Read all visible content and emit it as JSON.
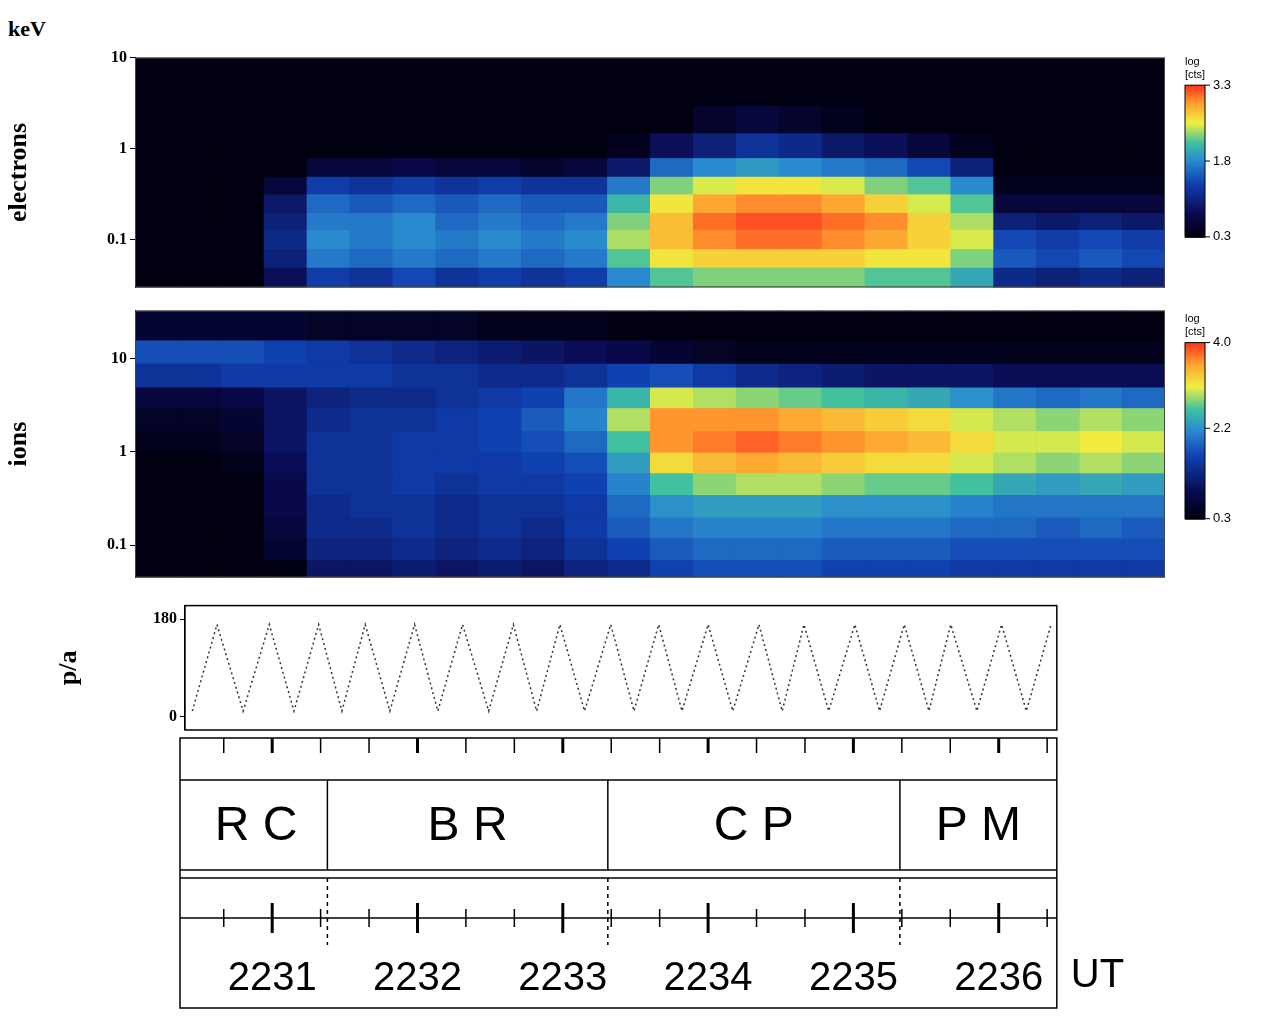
{
  "chart_data": [
    {
      "type": "heatmap",
      "ylabel": "electrons",
      "annotations": [
        "keV"
      ],
      "log": "y",
      "grid": false,
      "tick_labels": "y",
      "xlim": [
        2230.4,
        2236.4
      ],
      "ylim": [
        0.03,
        10
      ],
      "yticks": [
        0.1,
        1,
        10
      ],
      "x_edges": [
        2230.4,
        2230.65,
        2230.9,
        2231.15,
        2231.4,
        2231.65,
        2231.9,
        2232.15,
        2232.4,
        2232.65,
        2232.9,
        2233.15,
        2233.4,
        2233.65,
        2233.9,
        2234.15,
        2234.4,
        2234.65,
        2234.9,
        2235.15,
        2235.4,
        2235.65,
        2235.9,
        2236.15,
        2236.4
      ],
      "y_edges": [
        0.03,
        0.05,
        0.08,
        0.13,
        0.2,
        0.32,
        0.5,
        0.8,
        1.5,
        3,
        10
      ],
      "cells": [
        [
          0.3,
          0.3,
          0.3,
          0.8,
          1.3,
          1.2,
          1.4,
          1.2,
          1.3,
          1.2,
          1.3,
          1.8,
          2.2,
          2.3,
          2.3,
          2.3,
          2.3,
          2.2,
          2.2,
          2.0,
          1.1,
          1.0,
          1.1,
          1.0
        ],
        [
          0.3,
          0.3,
          0.3,
          1.0,
          1.7,
          1.6,
          1.7,
          1.6,
          1.7,
          1.6,
          1.7,
          2.2,
          2.6,
          2.7,
          2.7,
          2.7,
          2.7,
          2.6,
          2.6,
          2.3,
          1.5,
          1.4,
          1.5,
          1.4
        ],
        [
          0.3,
          0.3,
          0.3,
          1.1,
          1.8,
          1.7,
          1.8,
          1.7,
          1.8,
          1.7,
          1.8,
          2.4,
          2.8,
          3.0,
          3.1,
          3.1,
          3.0,
          2.9,
          2.7,
          2.5,
          1.4,
          1.3,
          1.4,
          1.3
        ],
        [
          0.3,
          0.3,
          0.3,
          1.0,
          1.7,
          1.7,
          1.8,
          1.6,
          1.7,
          1.6,
          1.7,
          2.3,
          2.8,
          3.1,
          3.2,
          3.2,
          3.1,
          3.0,
          2.7,
          2.4,
          1.0,
          0.9,
          1.0,
          0.9
        ],
        [
          0.3,
          0.3,
          0.3,
          0.9,
          1.6,
          1.5,
          1.6,
          1.5,
          1.6,
          1.5,
          1.5,
          2.1,
          2.6,
          2.9,
          3.0,
          3.0,
          2.9,
          2.7,
          2.5,
          2.2,
          0.6,
          0.6,
          0.6,
          0.6
        ],
        [
          0.3,
          0.3,
          0.3,
          0.6,
          1.3,
          1.2,
          1.3,
          1.2,
          1.3,
          1.2,
          1.2,
          1.7,
          2.3,
          2.5,
          2.6,
          2.6,
          2.5,
          2.3,
          2.2,
          1.8,
          0.4,
          0.4,
          0.4,
          0.4
        ],
        [
          0.3,
          0.3,
          0.3,
          0.3,
          0.6,
          0.6,
          0.7,
          0.6,
          0.6,
          0.5,
          0.6,
          0.9,
          1.6,
          1.8,
          1.9,
          1.8,
          1.7,
          1.6,
          1.4,
          1.0,
          0.3,
          0.3,
          0.3,
          0.3
        ],
        [
          0.3,
          0.3,
          0.3,
          0.3,
          0.3,
          0.3,
          0.3,
          0.3,
          0.3,
          0.3,
          0.3,
          0.4,
          0.8,
          1.0,
          1.2,
          1.1,
          0.9,
          0.8,
          0.6,
          0.4,
          0.3,
          0.3,
          0.3,
          0.3
        ],
        [
          0.3,
          0.3,
          0.3,
          0.3,
          0.3,
          0.3,
          0.3,
          0.3,
          0.3,
          0.3,
          0.3,
          0.3,
          0.3,
          0.5,
          0.6,
          0.5,
          0.4,
          0.3,
          0.3,
          0.3,
          0.3,
          0.3,
          0.3,
          0.3
        ],
        [
          0.3,
          0.3,
          0.3,
          0.3,
          0.3,
          0.3,
          0.3,
          0.3,
          0.3,
          0.3,
          0.3,
          0.3,
          0.3,
          0.3,
          0.3,
          0.3,
          0.3,
          0.3,
          0.3,
          0.3,
          0.3,
          0.3,
          0.3,
          0.3
        ]
      ],
      "colorbar": {
        "label": "log [cts]",
        "range": [
          0.3,
          3.3
        ],
        "ticks": [
          3.3,
          1.8,
          0.3
        ]
      }
    },
    {
      "type": "heatmap",
      "ylabel": "ions",
      "log": "y",
      "grid": false,
      "tick_labels": "y",
      "xlim": [
        2230.4,
        2236.4
      ],
      "ylim": [
        0.045,
        33
      ],
      "yticks": [
        0.1,
        1,
        10
      ],
      "x_edges": [
        2230.4,
        2230.65,
        2230.9,
        2231.15,
        2231.4,
        2231.65,
        2231.9,
        2232.15,
        2232.4,
        2232.65,
        2232.9,
        2233.15,
        2233.4,
        2233.65,
        2233.9,
        2234.15,
        2234.4,
        2234.65,
        2234.9,
        2235.15,
        2235.4,
        2235.65,
        2235.9,
        2236.15,
        2236.4
      ],
      "y_edges": [
        0.045,
        0.07,
        0.12,
        0.2,
        0.35,
        0.6,
        1,
        1.7,
        3,
        5,
        9,
        16,
        33
      ],
      "cells": [
        [
          0.3,
          0.3,
          0.3,
          0.3,
          1.0,
          1.0,
          1.1,
          1.0,
          1.1,
          1.0,
          1.2,
          1.3,
          1.6,
          1.7,
          1.7,
          1.7,
          1.6,
          1.6,
          1.6,
          1.5,
          1.5,
          1.5,
          1.5,
          1.5
        ],
        [
          0.3,
          0.3,
          0.3,
          0.6,
          1.2,
          1.2,
          1.3,
          1.2,
          1.3,
          1.2,
          1.4,
          1.6,
          1.8,
          1.9,
          1.9,
          1.9,
          1.8,
          1.8,
          1.8,
          1.7,
          1.7,
          1.7,
          1.7,
          1.7
        ],
        [
          0.3,
          0.3,
          0.3,
          0.7,
          1.3,
          1.3,
          1.4,
          1.3,
          1.4,
          1.3,
          1.5,
          1.8,
          2.0,
          2.1,
          2.1,
          2.1,
          2.0,
          2.0,
          2.0,
          1.9,
          1.9,
          1.8,
          1.9,
          1.8
        ],
        [
          0.3,
          0.3,
          0.3,
          0.8,
          1.3,
          1.4,
          1.4,
          1.3,
          1.4,
          1.4,
          1.5,
          1.9,
          2.2,
          2.3,
          2.3,
          2.3,
          2.2,
          2.2,
          2.2,
          2.1,
          2.0,
          2.0,
          2.0,
          2.0
        ],
        [
          0.3,
          0.3,
          0.3,
          0.8,
          1.4,
          1.4,
          1.5,
          1.4,
          1.5,
          1.5,
          1.6,
          2.1,
          2.6,
          2.8,
          2.9,
          2.9,
          2.8,
          2.7,
          2.7,
          2.6,
          2.4,
          2.3,
          2.4,
          2.3
        ],
        [
          0.3,
          0.3,
          0.4,
          0.9,
          1.4,
          1.4,
          1.5,
          1.5,
          1.5,
          1.6,
          1.7,
          2.3,
          3.2,
          3.4,
          3.5,
          3.4,
          3.3,
          3.2,
          3.2,
          3.0,
          2.9,
          2.8,
          2.9,
          2.8
        ],
        [
          0.4,
          0.4,
          0.5,
          1.0,
          1.4,
          1.4,
          1.5,
          1.5,
          1.6,
          1.7,
          1.9,
          2.6,
          3.6,
          3.7,
          3.8,
          3.7,
          3.6,
          3.5,
          3.4,
          3.2,
          3.0,
          3.0,
          3.1,
          3.0
        ],
        [
          0.5,
          0.5,
          0.6,
          1.0,
          1.3,
          1.4,
          1.4,
          1.5,
          1.6,
          1.8,
          2.1,
          2.9,
          3.6,
          3.6,
          3.6,
          3.5,
          3.4,
          3.3,
          3.2,
          3.0,
          2.9,
          2.8,
          2.9,
          2.8
        ],
        [
          0.7,
          0.7,
          0.8,
          1.0,
          1.2,
          1.3,
          1.3,
          1.4,
          1.5,
          1.6,
          2.0,
          2.5,
          3.0,
          2.9,
          2.8,
          2.7,
          2.6,
          2.5,
          2.4,
          2.2,
          2.0,
          1.9,
          2.0,
          1.9
        ],
        [
          1.4,
          1.4,
          1.5,
          1.5,
          1.5,
          1.5,
          1.4,
          1.4,
          1.3,
          1.3,
          1.4,
          1.6,
          1.7,
          1.5,
          1.3,
          1.2,
          1.1,
          1.0,
          1.0,
          1.0,
          0.9,
          0.9,
          0.9,
          0.9
        ],
        [
          1.7,
          1.7,
          1.7,
          1.6,
          1.5,
          1.4,
          1.3,
          1.2,
          1.1,
          1.0,
          0.9,
          0.8,
          0.6,
          0.5,
          0.4,
          0.4,
          0.4,
          0.4,
          0.4,
          0.4,
          0.4,
          0.4,
          0.4,
          0.4
        ],
        [
          0.6,
          0.6,
          0.6,
          0.6,
          0.5,
          0.5,
          0.5,
          0.5,
          0.4,
          0.4,
          0.4,
          0.3,
          0.3,
          0.3,
          0.3,
          0.3,
          0.3,
          0.3,
          0.3,
          0.3,
          0.3,
          0.3,
          0.3,
          0.3
        ]
      ],
      "colorbar": {
        "label": "log [cts]",
        "range": [
          0.3,
          4.0
        ],
        "ticks": [
          {
            "value": 4,
            "label": "4.0"
          },
          2.2,
          0.3
        ]
      }
    },
    {
      "type": "line",
      "ylabel": "p/a",
      "xlabel": "UT",
      "grid": false,
      "xlim": [
        2230.4,
        2236.4
      ],
      "xticks": [
        2231,
        2232,
        2233,
        2234,
        2235,
        2236
      ],
      "ylim": [
        -25,
        205
      ],
      "yticks": [
        0,
        180
      ],
      "x": [
        2230.45,
        2230.62,
        2230.8,
        2230.98,
        2231.15,
        2231.32,
        2231.48,
        2231.64,
        2231.81,
        2231.98,
        2232.14,
        2232.31,
        2232.49,
        2232.66,
        2232.82,
        2232.98,
        2233.15,
        2233.33,
        2233.49,
        2233.66,
        2233.82,
        2234,
        2234.17,
        2234.35,
        2234.51,
        2234.66,
        2234.83,
        2235.01,
        2235.18,
        2235.35,
        2235.52,
        2235.67,
        2235.85,
        2236.02,
        2236.19,
        2236.36
      ],
      "values": [
        10,
        170,
        10,
        170,
        10,
        170,
        10,
        170,
        10,
        170,
        10,
        170,
        10,
        170,
        10,
        170,
        10,
        170,
        10,
        170,
        10,
        170,
        10,
        170,
        10,
        170,
        10,
        170,
        10,
        170,
        10,
        170,
        10,
        170,
        10,
        170
      ],
      "color": "#333333",
      "line_style": "dotted",
      "regions": [
        {
          "label": "R C",
          "start": 2230.4,
          "end": 2231.38
        },
        {
          "label": "B R",
          "start": 2231.38,
          "end": 2233.31
        },
        {
          "label": "C P",
          "start": 2233.31,
          "end": 2235.32
        },
        {
          "label": "P M",
          "start": 2235.32,
          "end": 2236.4
        }
      ]
    }
  ]
}
